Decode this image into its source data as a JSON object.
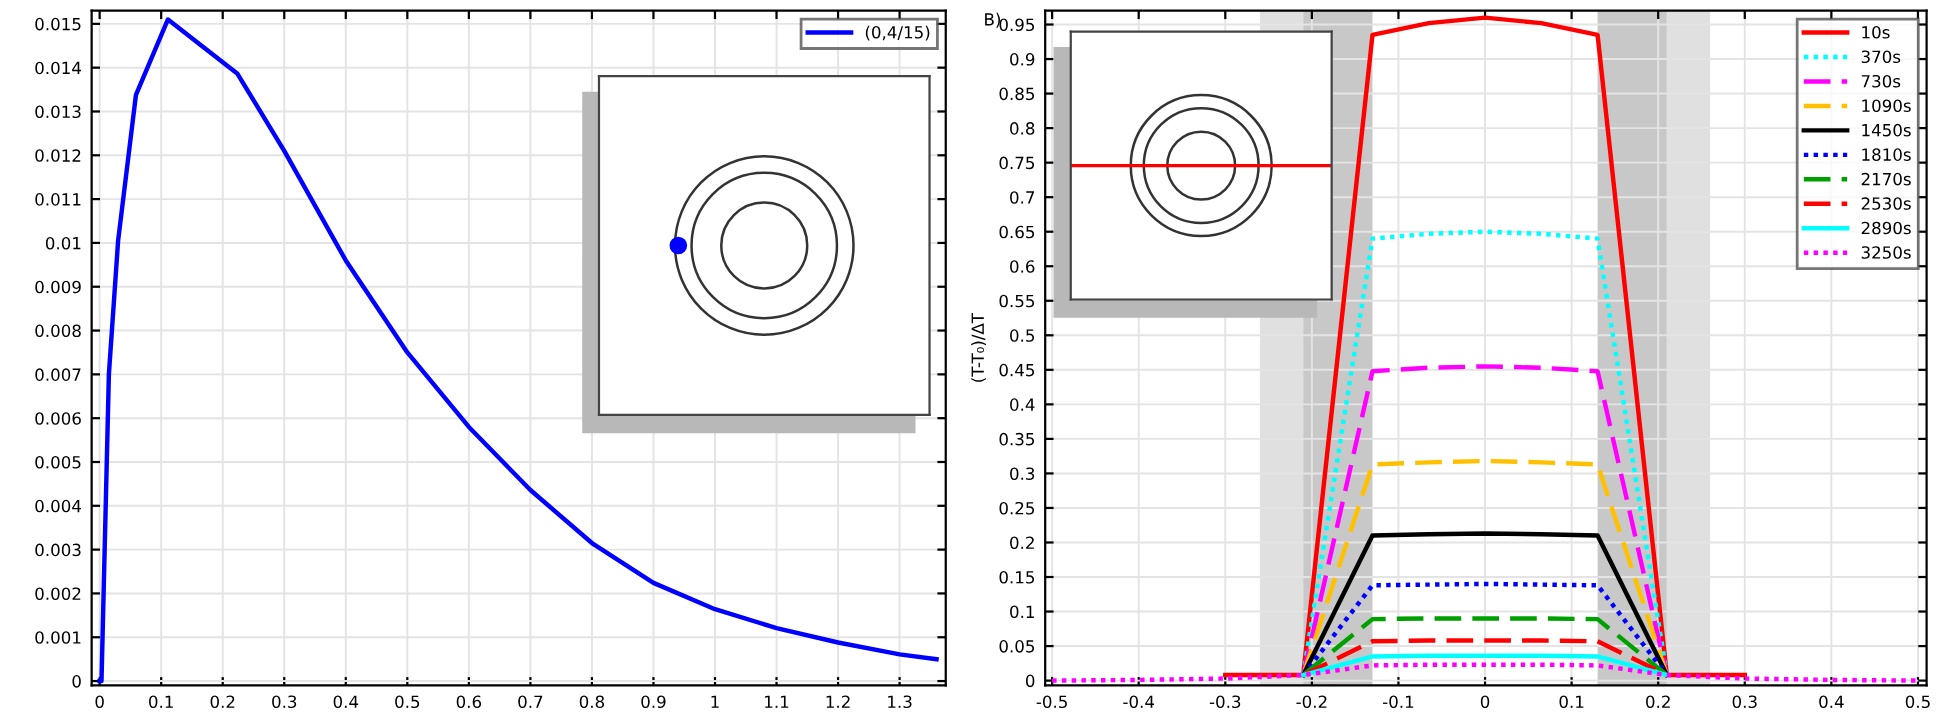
{
  "chart_data": [
    {
      "type": "line",
      "x": [
        0,
        0.003,
        0.015,
        0.03,
        0.059,
        0.111,
        0.224,
        0.3,
        0.4,
        0.5,
        0.6,
        0.7,
        0.8,
        0.9,
        1,
        1.1,
        1.2,
        1.3,
        1.36
      ],
      "series": [
        {
          "name": "(0,4/15)",
          "color": "#0000ff",
          "values": [
            0,
            0,
            0.007,
            0.01005,
            0.01338,
            0.0151,
            0.01386,
            0.0121,
            0.0096,
            0.0075,
            0.0058,
            0.00436,
            0.00315,
            0.00224,
            0.00164,
            0.00121,
            0.00088,
            0.00061,
            0.0005
          ]
        }
      ],
      "xlim": [
        -0.013,
        1.375
      ],
      "ylim": [
        -0.0001,
        0.0153
      ],
      "xticks": [
        0,
        0.1,
        0.2,
        0.3,
        0.4,
        0.5,
        0.6,
        0.7,
        0.8,
        0.9,
        1,
        1.1,
        1.2,
        1.3
      ],
      "yticks": [
        0,
        0.001,
        0.002,
        0.003,
        0.004,
        0.005,
        0.006,
        0.007,
        0.008,
        0.009,
        0.01,
        0.011,
        0.012,
        0.013,
        0.014,
        0.015
      ],
      "grid": true,
      "legend": "top right",
      "line_style": "solid",
      "marker": "none"
    },
    {
      "type": "line",
      "x": [
        -0.5,
        -0.4,
        -0.3,
        -0.21,
        -0.13,
        -0.065,
        0,
        0.065,
        0.13,
        0.21,
        0.3,
        0.4,
        0.5
      ],
      "ylabel": "(T-T₀)/ΔT",
      "annotations": [
        "B)"
      ],
      "series": [
        {
          "name": "10s",
          "color": "#ff0000",
          "line_style": "solid",
          "values": [
            null,
            null,
            0.008,
            0.008,
            0.935,
            0.952,
            0.96,
            0.952,
            0.935,
            0.008,
            0.008,
            null,
            null
          ]
        },
        {
          "name": "370s",
          "color": "#00ffff",
          "line_style": "dotted",
          "values": [
            null,
            null,
            null,
            0.008,
            0.64,
            0.647,
            0.65,
            0.647,
            0.64,
            0.008,
            null,
            null,
            null
          ]
        },
        {
          "name": "730s",
          "color": "#ff00ff",
          "line_style": "dashed",
          "values": [
            null,
            null,
            null,
            0.008,
            0.448,
            0.453,
            0.455,
            0.453,
            0.448,
            0.008,
            null,
            null,
            null
          ]
        },
        {
          "name": "1090s",
          "color": "#ffc000",
          "line_style": "dashed",
          "values": [
            null,
            null,
            null,
            0.008,
            0.313,
            0.316,
            0.318,
            0.316,
            0.313,
            0.008,
            null,
            null,
            null
          ]
        },
        {
          "name": "1450s",
          "color": "#000000",
          "line_style": "solid",
          "values": [
            null,
            null,
            null,
            0.008,
            0.21,
            0.212,
            0.213,
            0.212,
            0.21,
            0.008,
            null,
            null,
            null
          ]
        },
        {
          "name": "1810s",
          "color": "#0000ff",
          "line_style": "dotted",
          "values": [
            null,
            null,
            null,
            0.008,
            0.138,
            0.139,
            0.14,
            0.139,
            0.138,
            0.008,
            null,
            null,
            null
          ]
        },
        {
          "name": "2170s",
          "color": "#00a000",
          "line_style": "dashed",
          "values": [
            null,
            null,
            null,
            0.008,
            0.089,
            0.09,
            0.09,
            0.09,
            0.089,
            0.008,
            null,
            null,
            null
          ]
        },
        {
          "name": "2530s",
          "color": "#ff0000",
          "line_style": "dashed",
          "values": [
            null,
            null,
            null,
            0.008,
            0.057,
            0.058,
            0.058,
            0.058,
            0.057,
            0.008,
            null,
            null,
            null
          ]
        },
        {
          "name": "2890s",
          "color": "#00ffff",
          "line_style": "solid",
          "values": [
            null,
            null,
            null,
            0.008,
            0.035,
            0.036,
            0.036,
            0.036,
            0.035,
            0.008,
            null,
            null,
            null
          ]
        },
        {
          "name": "3250s",
          "color": "#ff00ff",
          "line_style": "dotted",
          "values": [
            0,
            0.001,
            0.003,
            0.008,
            0.022,
            0.023,
            0.023,
            0.023,
            0.022,
            0.008,
            0.003,
            0.001,
            0
          ]
        }
      ],
      "bands": [
        {
          "axis": "x",
          "from": -0.26,
          "to": -0.21,
          "color": "#e0e0e0"
        },
        {
          "axis": "x",
          "from": -0.21,
          "to": -0.13,
          "color": "#c8c8c8"
        },
        {
          "axis": "x",
          "from": 0.13,
          "to": 0.21,
          "color": "#c8c8c8"
        },
        {
          "axis": "x",
          "from": 0.21,
          "to": 0.26,
          "color": "#e0e0e0"
        }
      ],
      "xlim": [
        -0.508,
        0.51
      ],
      "ylim": [
        -0.007,
        0.97
      ],
      "xticks": [
        -0.5,
        -0.4,
        -0.3,
        -0.2,
        -0.1,
        0,
        0.1,
        0.2,
        0.3,
        0.4,
        0.5
      ],
      "yticks": [
        0,
        0.05,
        0.1,
        0.15,
        0.2,
        0.25,
        0.3,
        0.35,
        0.4,
        0.45,
        0.5,
        0.55,
        0.6,
        0.65,
        0.7,
        0.75,
        0.8,
        0.85,
        0.9,
        0.95
      ],
      "grid": true,
      "legend": "top right",
      "marker": "none"
    }
  ]
}
